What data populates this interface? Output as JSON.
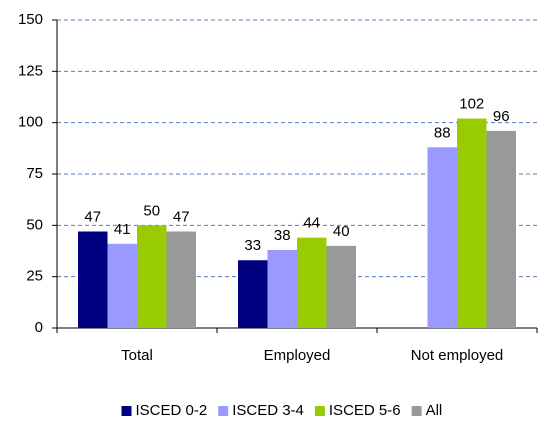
{
  "chart_data": {
    "type": "bar",
    "categories": [
      "Total",
      "Employed",
      "Not employed"
    ],
    "series": [
      {
        "name": "ISCED 0-2",
        "color": "#000080",
        "values": [
          47,
          33,
          null
        ]
      },
      {
        "name": "ISCED 3-4",
        "color": "#9999ff",
        "values": [
          41,
          38,
          88
        ]
      },
      {
        "name": "ISCED 5-6",
        "color": "#99cc00",
        "values": [
          50,
          44,
          102
        ]
      },
      {
        "name": "All",
        "color": "#999999",
        "values": [
          47,
          40,
          96
        ]
      }
    ],
    "ylim": [
      0,
      150
    ],
    "yticks": [
      0,
      25,
      50,
      75,
      100,
      125,
      150
    ],
    "grid": true,
    "legend": "bottom"
  }
}
